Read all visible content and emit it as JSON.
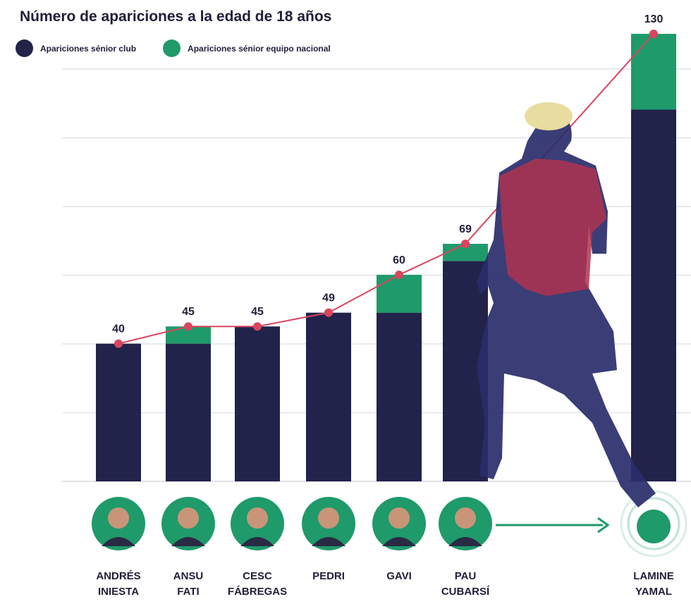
{
  "title": "Número de apariciones a la edad de 18 años",
  "legend": {
    "club_label": "Apariciones sénior club",
    "national_label": "Apariciones sénior equipo nacional"
  },
  "colors": {
    "club": "#22234a",
    "national": "#1f9a6a",
    "line": "#d9455f",
    "grid": "#e2e2ea"
  },
  "chart_data": {
    "type": "bar",
    "stacked": true,
    "title": "Número de apariciones a la edad de 18 años",
    "categories": [
      [
        "ANDRÉS",
        "INIESTA"
      ],
      [
        "ANSU",
        "FATI"
      ],
      [
        "CESC",
        "FÁBREGAS"
      ],
      [
        "PEDRI"
      ],
      [
        "GAVI"
      ],
      [
        "PAU",
        "CUBARSÍ"
      ],
      [
        "LAMINE",
        "YAMAL"
      ]
    ],
    "series": [
      {
        "name": "Apariciones sénior club",
        "values": [
          40,
          40,
          45,
          49,
          49,
          64,
          108
        ]
      },
      {
        "name": "Apariciones sénior equipo nacional",
        "values": [
          0,
          5,
          0,
          0,
          11,
          5,
          22
        ]
      }
    ],
    "totals": [
      40,
      45,
      45,
      49,
      60,
      69,
      130
    ],
    "ylim": [
      0,
      130
    ],
    "grid": true,
    "legend_position": "top-left"
  }
}
